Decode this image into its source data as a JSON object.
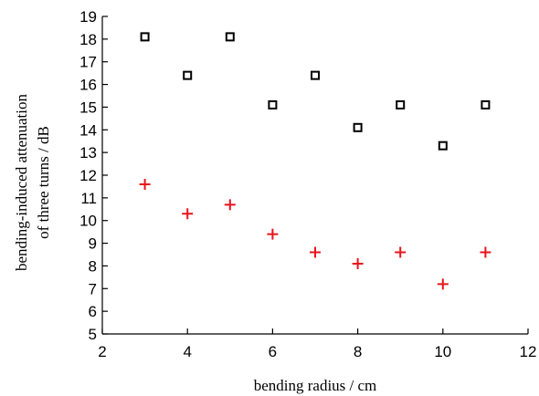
{
  "chart_data": {
    "type": "scatter",
    "title": "",
    "xlabel": "bending radius / cm",
    "ylabel_lines": [
      "bending-induced attenuation",
      "of three turns / dB"
    ],
    "xlim": [
      2,
      12
    ],
    "ylim": [
      5,
      19
    ],
    "xticks": [
      2,
      4,
      6,
      8,
      10,
      12
    ],
    "yticks": [
      5,
      6,
      7,
      8,
      9,
      10,
      11,
      12,
      13,
      14,
      15,
      16,
      17,
      18,
      19
    ],
    "grid": false,
    "legend": "none",
    "series": [
      {
        "marker": "square",
        "color": "#000000",
        "x": [
          3,
          4,
          5,
          6,
          7,
          8,
          9,
          10,
          11
        ],
        "y": [
          18.1,
          16.4,
          18.1,
          15.1,
          16.4,
          14.1,
          15.1,
          13.3,
          15.1
        ]
      },
      {
        "marker": "plus",
        "color": "#e8141c",
        "x": [
          3,
          4,
          5,
          6,
          7,
          8,
          9,
          10,
          11
        ],
        "y": [
          11.6,
          10.3,
          10.7,
          9.4,
          8.6,
          8.1,
          8.6,
          7.2,
          8.6
        ]
      }
    ]
  }
}
